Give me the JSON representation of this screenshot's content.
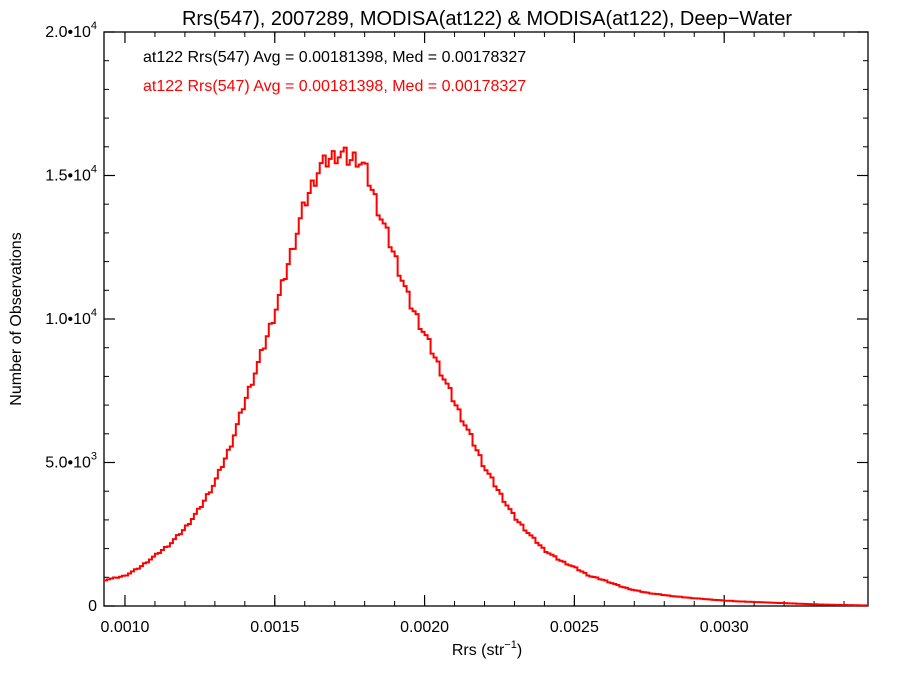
{
  "chart_data": {
    "type": "histogram",
    "title": "Rrs(547), 2007289, MODISA(at122) & MODISA(at122), Deep−Water",
    "xlabel_base": "Rrs (str",
    "xlabel_exp": "−1",
    "xlabel_close": ")",
    "ylabel": "Number of Observations",
    "xlim": [
      0.00093,
      0.00348
    ],
    "ylim": [
      0,
      20000
    ],
    "x_ticks": [
      {
        "value": 0.001,
        "label": "0.0010"
      },
      {
        "value": 0.0015,
        "label": "0.0015"
      },
      {
        "value": 0.002,
        "label": "0.0020"
      },
      {
        "value": 0.0025,
        "label": "0.0025"
      },
      {
        "value": 0.003,
        "label": "0.0030"
      }
    ],
    "y_ticks": [
      {
        "value": 0,
        "mant": "0",
        "exp": ""
      },
      {
        "value": 5000,
        "mant": "5.0•10",
        "exp": "3"
      },
      {
        "value": 10000,
        "mant": "1.0•10",
        "exp": "4"
      },
      {
        "value": 15000,
        "mant": "1.5•10",
        "exp": "4"
      },
      {
        "value": 20000,
        "mant": "2.0•10",
        "exp": "4"
      }
    ],
    "annotations": [
      {
        "text": "at122 Rrs(547) Avg = 0.00181398, Med = 0.00178327",
        "color": "#000000"
      },
      {
        "text": "at122 Rrs(547) Avg = 0.00181398, Med = 0.00178327",
        "color": "#ff0000"
      }
    ],
    "series": [
      {
        "color": "#ff0000",
        "x": [
          0.00093,
          0.001,
          0.00105,
          0.0011,
          0.00115,
          0.0012,
          0.00125,
          0.0013,
          0.00135,
          0.0014,
          0.00145,
          0.0015,
          0.00155,
          0.0016,
          0.00165,
          0.0017,
          0.00173,
          0.00175,
          0.00177,
          0.0018,
          0.00185,
          0.0019,
          0.00195,
          0.002,
          0.00205,
          0.0021,
          0.00215,
          0.0022,
          0.00225,
          0.0023,
          0.00235,
          0.0024,
          0.00245,
          0.0025,
          0.00255,
          0.0026,
          0.00265,
          0.0027,
          0.00275,
          0.0028,
          0.00285,
          0.0029,
          0.00295,
          0.003,
          0.00305,
          0.0031,
          0.00315,
          0.0032,
          0.00325,
          0.0033,
          0.00335,
          0.0034,
          0.00345,
          0.00348
        ],
        "y": [
          900,
          1050,
          1350,
          1750,
          2150,
          2700,
          3400,
          4300,
          5500,
          7100,
          8600,
          10200,
          12100,
          14000,
          15300,
          15700,
          15750,
          15500,
          15650,
          15300,
          13700,
          12200,
          10600,
          9500,
          8300,
          7100,
          6000,
          4850,
          3950,
          3100,
          2500,
          1950,
          1600,
          1350,
          1050,
          900,
          700,
          550,
          450,
          380,
          320,
          270,
          230,
          190,
          160,
          140,
          120,
          100,
          80,
          60,
          45,
          35,
          25,
          20
        ]
      }
    ]
  }
}
